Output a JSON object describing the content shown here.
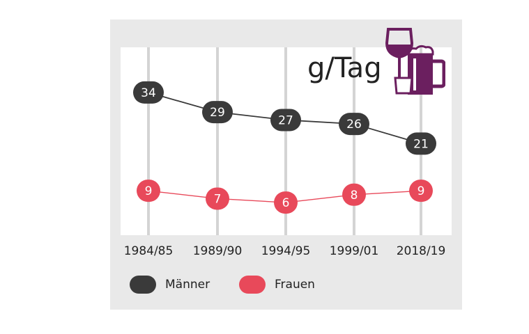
{
  "chart_data": {
    "type": "line",
    "unit_label": "g/Tag",
    "categories": [
      "1984/85",
      "1989/90",
      "1994/95",
      "1999/01",
      "2018/19"
    ],
    "series": [
      {
        "name": "Männer",
        "values": [
          34,
          29,
          27,
          26,
          21
        ],
        "color": "#3a3a3a"
      },
      {
        "name": "Frauen",
        "values": [
          9,
          7,
          6,
          8,
          9
        ],
        "color": "#e8495a"
      }
    ],
    "legend_placement": "bottom-left",
    "grid": "vertical"
  },
  "colors": {
    "panel_background": "#e9e9e9",
    "plot_background": "#ffffff",
    "gridline": "#d4d4d4",
    "icon": "#6b1f5f"
  },
  "icon": "drinks-icon"
}
